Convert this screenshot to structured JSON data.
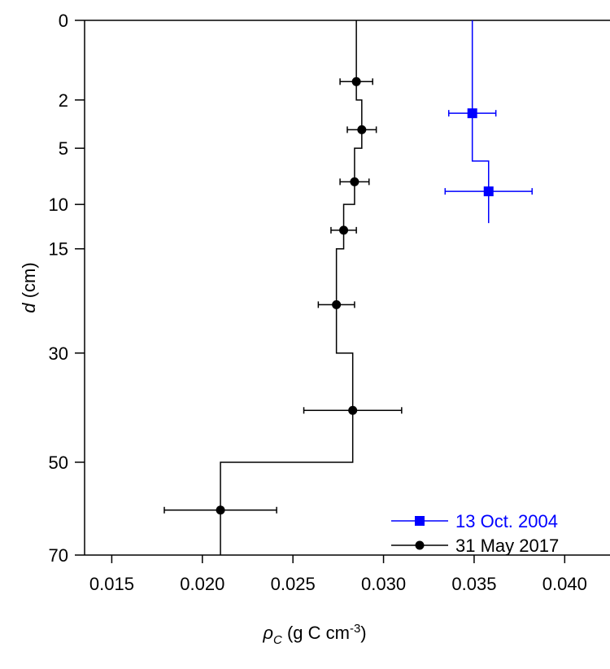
{
  "chart_data": {
    "type": "line",
    "xlabel": {
      "symbol": "ρ",
      "sub": "C",
      "units_pre": " (g C cm",
      "sup": "-3",
      "units_post": ")"
    },
    "ylabel": {
      "symbol": "d",
      "units": " (cm)"
    },
    "xlim": [
      0.0135,
      0.0425
    ],
    "ylim": [
      0,
      70
    ],
    "x_ticks": [
      {
        "value": 0.015,
        "label": "0.015"
      },
      {
        "value": 0.02,
        "label": "0.020"
      },
      {
        "value": 0.025,
        "label": "0.025"
      },
      {
        "value": 0.03,
        "label": "0.030"
      },
      {
        "value": 0.035,
        "label": "0.035"
      },
      {
        "value": 0.04,
        "label": "0.040"
      }
    ],
    "y_ticks": [
      {
        "value": 0,
        "label": "0"
      },
      {
        "value": 2,
        "label": "2"
      },
      {
        "value": 5,
        "label": "5"
      },
      {
        "value": 10,
        "label": "10"
      },
      {
        "value": 15,
        "label": "15"
      },
      {
        "value": 30,
        "label": "30"
      },
      {
        "value": 50,
        "label": "50"
      },
      {
        "value": 70,
        "label": "70"
      }
    ],
    "series": [
      {
        "name": "13 Oct. 2004",
        "color": "#0000ff",
        "marker": "square",
        "points": [
          {
            "d": 2.7,
            "rho": 0.0349,
            "err": 0.0013
          },
          {
            "d": 8.7,
            "rho": 0.0358,
            "err": 0.0024
          }
        ],
        "profile": [
          {
            "rho": 0.0349,
            "d_top": 0,
            "d_bottom": 6
          },
          {
            "rho": 0.0358,
            "d_top": 6,
            "d_bottom": 12
          }
        ]
      },
      {
        "name": "31 May 2017",
        "color": "#000000",
        "marker": "circle",
        "points": [
          {
            "d": 1.2,
            "rho": 0.0285,
            "err": 0.0009
          },
          {
            "d": 3.7,
            "rho": 0.0288,
            "err": 0.0008
          },
          {
            "d": 7.8,
            "rho": 0.0284,
            "err": 0.0008
          },
          {
            "d": 12.8,
            "rho": 0.0278,
            "err": 0.0007
          },
          {
            "d": 22.5,
            "rho": 0.0274,
            "err": 0.001
          },
          {
            "d": 40.0,
            "rho": 0.0283,
            "err": 0.0027
          },
          {
            "d": 60.0,
            "rho": 0.021,
            "err": 0.0031
          }
        ],
        "profile": [
          {
            "rho": 0.0285,
            "d_top": 0,
            "d_bottom": 2
          },
          {
            "rho": 0.0288,
            "d_top": 2,
            "d_bottom": 5
          },
          {
            "rho": 0.0284,
            "d_top": 5,
            "d_bottom": 10
          },
          {
            "rho": 0.0278,
            "d_top": 10,
            "d_bottom": 15
          },
          {
            "rho": 0.0274,
            "d_top": 15,
            "d_bottom": 30
          },
          {
            "rho": 0.0283,
            "d_top": 30,
            "d_bottom": 50
          },
          {
            "rho": 0.021,
            "d_top": 50,
            "d_bottom": 70
          }
        ]
      }
    ],
    "legend": {
      "position": "bottom-right"
    },
    "grid": false
  }
}
